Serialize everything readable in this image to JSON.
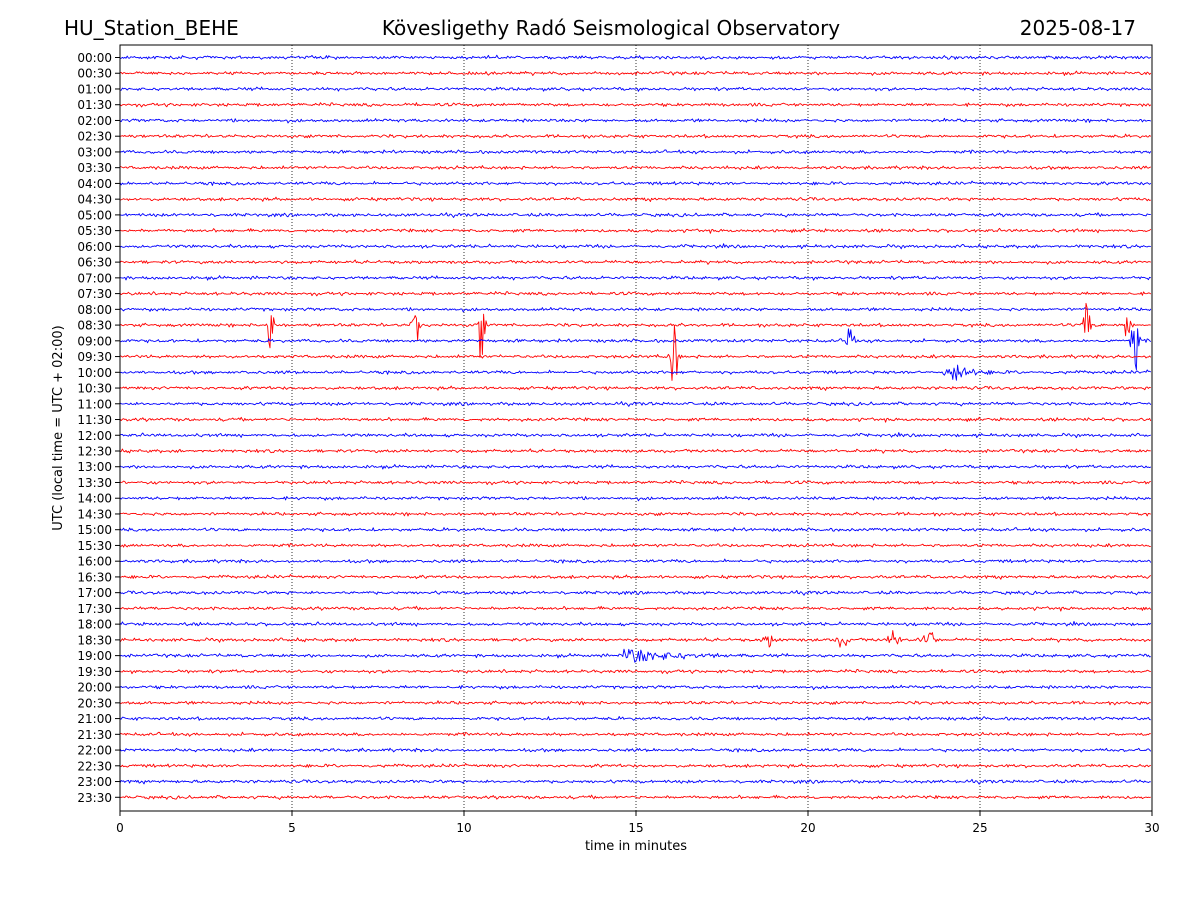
{
  "header": {
    "station": "HU_Station_BEHE",
    "observatory": "Kövesligethy Radó Seismological Observatory",
    "date": "2025-08-17"
  },
  "chart_data": {
    "type": "line",
    "title": "Kövesligethy Radó Seismological Observatory",
    "xlabel": "time in minutes",
    "ylabel": "UTC (local time = UTC + 02:00)",
    "xlim": [
      0,
      30
    ],
    "xticks": [
      0,
      5,
      10,
      15,
      20,
      25,
      30
    ],
    "rows": [
      "00:00",
      "00:30",
      "01:00",
      "01:30",
      "02:00",
      "02:30",
      "03:00",
      "03:30",
      "04:00",
      "04:30",
      "05:00",
      "05:30",
      "06:00",
      "06:30",
      "07:00",
      "07:30",
      "08:00",
      "08:30",
      "09:00",
      "09:30",
      "10:00",
      "10:30",
      "11:00",
      "11:30",
      "12:00",
      "12:30",
      "13:00",
      "13:30",
      "14:00",
      "14:30",
      "15:00",
      "15:30",
      "16:00",
      "16:30",
      "17:00",
      "17:30",
      "18:00",
      "18:30",
      "19:00",
      "19:30",
      "20:00",
      "20:30",
      "21:00",
      "21:30",
      "22:00",
      "22:30",
      "23:00",
      "23:30"
    ],
    "colors": [
      "#0000ff",
      "#ff0000"
    ],
    "grid": "vertical-dotted",
    "events": [
      {
        "row": "08:30",
        "minute": 4.4,
        "amplitude": 2.0
      },
      {
        "row": "08:30",
        "minute": 8.6,
        "amplitude": 2.0
      },
      {
        "row": "08:30",
        "minute": 10.5,
        "amplitude": 2.0
      },
      {
        "row": "08:30",
        "minute": 28.1,
        "amplitude": 2.0
      },
      {
        "row": "08:30",
        "minute": 29.3,
        "amplitude": 2.0
      },
      {
        "row": "09:00",
        "minute": 21.2,
        "amplitude": 2.2
      },
      {
        "row": "09:00",
        "minute": 29.5,
        "amplitude": 3.0
      },
      {
        "row": "09:30",
        "minute": 16.1,
        "amplitude": 3.0
      },
      {
        "row": "10:00",
        "minute": 24.2,
        "amplitude": 1.0
      },
      {
        "row": "18:30",
        "minute": 18.9,
        "amplitude": 0.3
      },
      {
        "row": "18:30",
        "minute": 21.0,
        "amplitude": 0.3
      },
      {
        "row": "18:30",
        "minute": 22.5,
        "amplitude": 0.4
      },
      {
        "row": "18:30",
        "minute": 23.5,
        "amplitude": 0.5
      },
      {
        "row": "19:00",
        "minute": 15.2,
        "amplitude": 0.6
      }
    ]
  }
}
